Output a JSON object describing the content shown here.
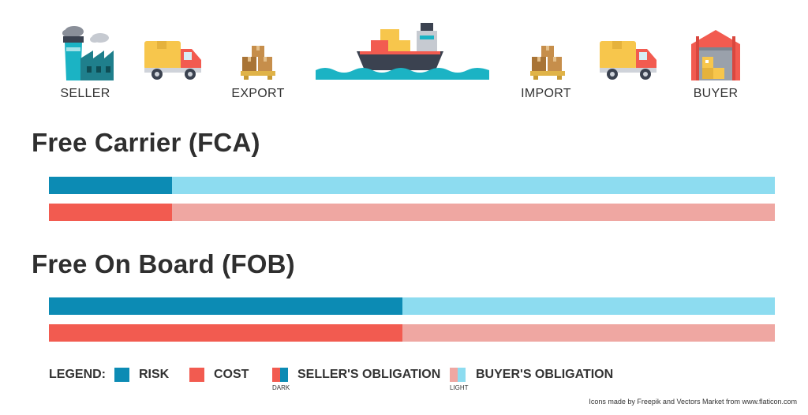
{
  "stages": [
    {
      "label": "SELLER",
      "icon": "factory-icon"
    },
    {
      "label": "",
      "icon": "truck-icon"
    },
    {
      "label": "EXPORT",
      "icon": "boxes-icon"
    },
    {
      "label": "",
      "icon": "cargo-ship-icon"
    },
    {
      "label": "IMPORT",
      "icon": "boxes-icon"
    },
    {
      "label": "",
      "icon": "truck-icon"
    },
    {
      "label": "BUYER",
      "icon": "warehouse-icon"
    }
  ],
  "sections": [
    {
      "title": "Free Carrier (FCA)",
      "risk_seller_fraction": 0.17,
      "cost_seller_fraction": 0.17
    },
    {
      "title": "Free On Board (FOB)",
      "risk_seller_fraction": 0.487,
      "cost_seller_fraction": 0.487
    }
  ],
  "legend": {
    "title": "LEGEND:",
    "risk": "RISK",
    "cost": "COST",
    "seller": "SELLER'S OBLIGATION",
    "seller_sub": "DARK",
    "buyer": "BUYER'S OBLIGATION",
    "buyer_sub": "LIGHT"
  },
  "colors": {
    "risk_dark": "#0c8bb4",
    "risk_light": "#8ddcf0",
    "cost_dark": "#f25b50",
    "cost_light": "#efa7a2"
  },
  "credit": "Icons made by Freepik and Vectors Market from www.flaticon.com"
}
